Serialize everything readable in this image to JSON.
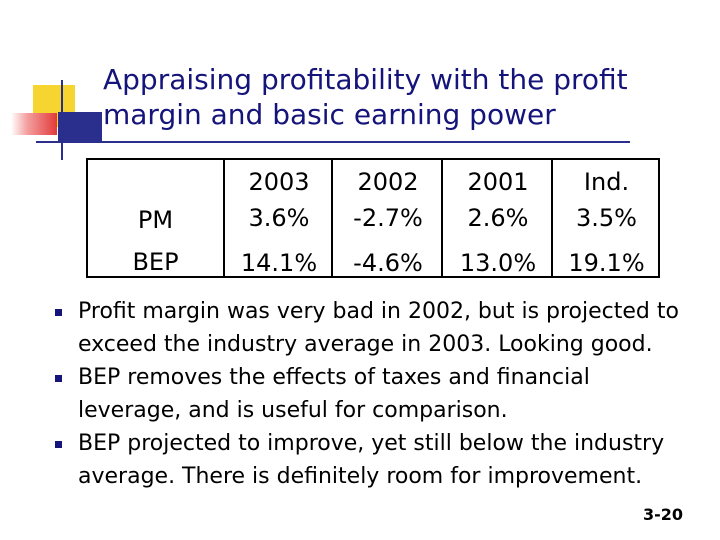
{
  "title_lines": [
    "Appraising profitability with the profit",
    "margin and basic earning power"
  ],
  "table": {
    "headers": [
      "",
      "2003",
      "2002",
      "2001",
      "Ind."
    ],
    "rows": [
      {
        "label": "PM",
        "values": [
          "3.6%",
          "-2.7%",
          "2.6%",
          "3.5%"
        ]
      },
      {
        "label": "BEP",
        "values": [
          "14.1%",
          "-4.6%",
          "13.0%",
          "19.1%"
        ]
      }
    ]
  },
  "bullets": [
    "Profit margin was very bad in 2002, but is projected to exceed the industry average in 2003.  Looking good.",
    "BEP removes the effects of taxes and financial leverage, and is useful for comparison.",
    "BEP projected to improve, yet still below the industry average.  There is definitely room for improvement."
  ],
  "slide_number": "3-20",
  "colors": {
    "title": "#14147a",
    "accent_yellow": "#f7d531",
    "accent_red": "#e23a3a",
    "accent_blue": "#2a2e8c"
  }
}
